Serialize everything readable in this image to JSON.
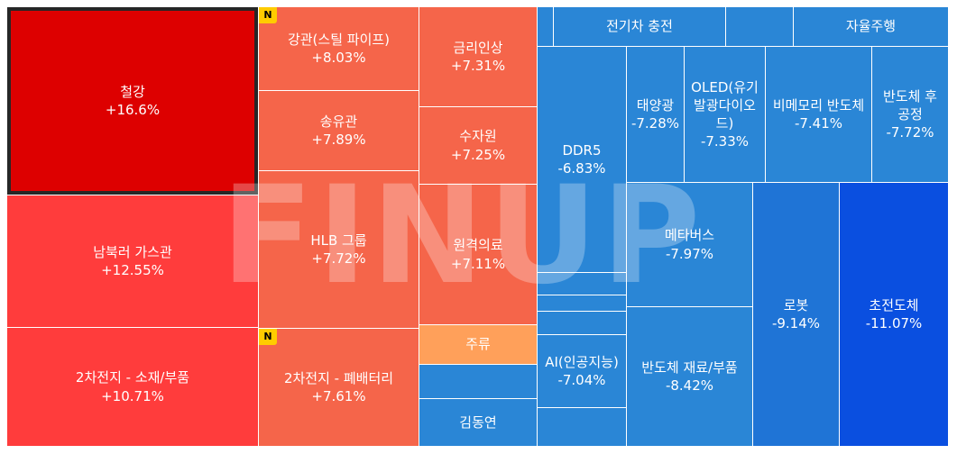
{
  "chart_data": {
    "type": "treemap",
    "cells": [
      {
        "label": "철강",
        "value": "+16.6%",
        "color": "#dd0000",
        "selected": true
      },
      {
        "label": "강관(스틸 파이프)",
        "value": "+8.03%",
        "color": "#f5654a",
        "badge": "N"
      },
      {
        "label": "송유관",
        "value": "+7.89%",
        "color": "#f5654a"
      },
      {
        "label": "HLB 그룹",
        "value": "+7.72%",
        "color": "#f5654a"
      },
      {
        "label": "2차전지 - 폐배터리",
        "value": "+7.61%",
        "color": "#f5654a",
        "badge": "N"
      },
      {
        "label": "금리인상",
        "value": "+7.31%",
        "color": "#f5654a"
      },
      {
        "label": "수자원",
        "value": "+7.25%",
        "color": "#f5654a"
      },
      {
        "label": "원격의료",
        "value": "+7.11%",
        "color": "#f5654a"
      },
      {
        "label": "주류",
        "value": "",
        "color": "#ffa05a"
      },
      {
        "label": "",
        "value": "",
        "color": "#2a86d6"
      },
      {
        "label": "김동연",
        "value": "",
        "color": "#2a86d6"
      },
      {
        "label": "남북러 가스관",
        "value": "+12.55%",
        "color": "#ff3c3c"
      },
      {
        "label": "2차전지 - 소재/부품",
        "value": "+10.71%",
        "color": "#ff3c3c"
      },
      {
        "label": "",
        "value": "",
        "color": "#2a86d6"
      },
      {
        "label": "전기차 충전",
        "value": "",
        "color": "#2a86d6"
      },
      {
        "label": "",
        "value": "",
        "color": "#2a86d6"
      },
      {
        "label": "자율주행",
        "value": "",
        "color": "#2a86d6"
      },
      {
        "label": "DDR5",
        "value": "-6.83%",
        "color": "#2a86d6"
      },
      {
        "label": "태양광",
        "value": "-7.28%",
        "color": "#2a86d6"
      },
      {
        "label": "OLED(유기발광다이오드)",
        "value": "-7.33%",
        "color": "#2a86d6"
      },
      {
        "label": "비메모리 반도체",
        "value": "-7.41%",
        "color": "#2a86d6"
      },
      {
        "label": "반도체 후공정",
        "value": "-7.72%",
        "color": "#2a86d6"
      },
      {
        "label": "",
        "value": "",
        "color": "#2a86d6"
      },
      {
        "label": "",
        "value": "",
        "color": "#2a86d6"
      },
      {
        "label": "",
        "value": "",
        "color": "#2a86d6"
      },
      {
        "label": "AI(인공지능)",
        "value": "-7.04%",
        "color": "#2a86d6"
      },
      {
        "label": "",
        "value": "",
        "color": "#2a86d6"
      },
      {
        "label": "메타버스",
        "value": "-7.97%",
        "color": "#2a86d6"
      },
      {
        "label": "반도체 재료/부품",
        "value": "-8.42%",
        "color": "#2a86d6"
      },
      {
        "label": "로봇",
        "value": "-9.14%",
        "color": "#1f74d6"
      },
      {
        "label": "초전도체",
        "value": "-11.07%",
        "color": "#0a4fe0"
      }
    ]
  },
  "watermark": "FINUP"
}
